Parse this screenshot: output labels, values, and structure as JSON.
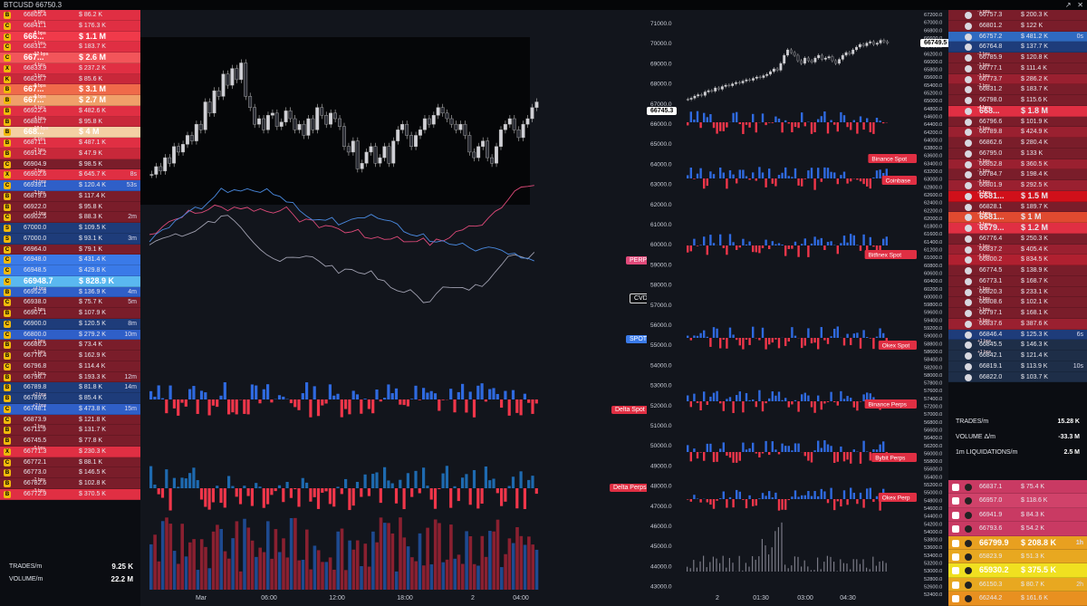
{
  "title": "BTCUSD 66750.3",
  "window_controls": [
    "↗",
    "✕"
  ],
  "left_trades": [
    {
      "ico": "B",
      "c": "#e02f43",
      "bps": "-6 bps",
      "price": "66805.4",
      "amount": "$ 86.2 K",
      "age": ""
    },
    {
      "ico": "C",
      "c": "#e02f43",
      "bps": "-5 bps",
      "price": "66841.1",
      "amount": "$ 176.3 K",
      "age": ""
    },
    {
      "ico": "C",
      "c": "#f03a4a",
      "bps": "-5 bps",
      "price": "666...",
      "amount": "$ 1.1 M",
      "age": "",
      "big": true
    },
    {
      "ico": "C",
      "c": "#e02f43",
      "bps": "-1 bps",
      "price": "66831.2",
      "amount": "$ 183.7 K",
      "age": ""
    },
    {
      "ico": "C",
      "c": "#f2555a",
      "bps": "-12 bps",
      "price": "667...",
      "amount": "$ 2.6 M",
      "age": "",
      "big": true
    },
    {
      "ico": "X",
      "c": "#e02f43",
      "bps": "-4 bps",
      "price": "66833.9",
      "amount": "$ 237.2 K",
      "age": ""
    },
    {
      "ico": "K",
      "c": "#c8283a",
      "bps": "-3 bps",
      "price": "66825.7",
      "amount": "$ 85.6 K",
      "age": ""
    },
    {
      "ico": "B",
      "c": "#f06a4a",
      "bps": "-9 bps",
      "price": "667...",
      "amount": "$ 3.1 M",
      "age": "",
      "big": true
    },
    {
      "ico": "B",
      "c": "#f0a06a",
      "bps": "-8 bps",
      "price": "667...",
      "amount": "$ 2.7 M",
      "age": "",
      "big": true
    },
    {
      "ico": "B",
      "c": "#e02f43",
      "bps": "-5 bps",
      "price": "66922.4",
      "amount": "$ 482.6 K",
      "age": ""
    },
    {
      "ico": "B",
      "c": "#c8283a",
      "bps": "-4 bps",
      "price": "66880.7",
      "amount": "$ 95.8 K",
      "age": ""
    },
    {
      "ico": "B",
      "c": "#f4d0a4",
      "bps": "-18 bps",
      "price": "668...",
      "amount": "$ 4 M",
      "age": "",
      "big": true
    },
    {
      "ico": "B",
      "c": "#e02f43",
      "bps": "-6 bps",
      "price": "66871.1",
      "amount": "$ 487.1 K",
      "age": ""
    },
    {
      "ico": "B",
      "c": "#c8283a",
      "bps": "-2 bps",
      "price": "66914.2",
      "amount": "$ 47.9 K",
      "age": ""
    },
    {
      "ico": "C",
      "c": "#7a1d2a",
      "bps": "",
      "price": "66904.9",
      "amount": "$ 98.5 K",
      "age": ""
    },
    {
      "ico": "X",
      "c": "#e02f43",
      "bps": "-7 bps",
      "price": "66902.6",
      "amount": "$ 645.7 K",
      "age": "8s"
    },
    {
      "ico": "C",
      "c": "#2f5fc8",
      "bps": "+1 bps",
      "price": "66939.1",
      "amount": "$ 120.4 K",
      "age": "53s"
    },
    {
      "ico": "B",
      "c": "#7a1d2a",
      "bps": "-2 bps",
      "price": "66879.9",
      "amount": "$ 117.4 K",
      "age": ""
    },
    {
      "ico": "B",
      "c": "#7a1d2a",
      "bps": "",
      "price": "66922.0",
      "amount": "$ 95.8 K",
      "age": ""
    },
    {
      "ico": "C",
      "c": "#7a1d2a",
      "bps": "+1 bps",
      "price": "66902.5",
      "amount": "$ 88.3 K",
      "age": "2m"
    },
    {
      "ico": "S",
      "c": "#1e3c7a",
      "bps": "",
      "price": "67000.0",
      "amount": "$ 109.5 K",
      "age": ""
    },
    {
      "ico": "S",
      "c": "#1e3c7a",
      "bps": "",
      "price": "67000.0",
      "amount": "$ 93.1 K",
      "age": "3m"
    },
    {
      "ico": "C",
      "c": "#7a1d2a",
      "bps": "",
      "price": "66964.0",
      "amount": "$ 79.1 K",
      "age": ""
    },
    {
      "ico": "C",
      "c": "#3a7ae8",
      "bps": "",
      "price": "66948.0",
      "amount": "$ 431.4 K",
      "age": ""
    },
    {
      "ico": "C",
      "c": "#3a7ae8",
      "bps": "",
      "price": "66948.5",
      "amount": "$ 429.8 K",
      "age": ""
    },
    {
      "ico": "C",
      "c": "#5ab8f0",
      "bps": "",
      "price": "66948.7",
      "amount": "$ 828.9 K",
      "age": "",
      "big": true
    },
    {
      "ico": "B",
      "c": "#2f5fc8",
      "bps": "+4 bps",
      "price": "66952.8",
      "amount": "$ 136.9 K",
      "age": "4m"
    },
    {
      "ico": "C",
      "c": "#7a1d2a",
      "bps": "",
      "price": "66938.0",
      "amount": "$ 75.7 K",
      "age": "5m"
    },
    {
      "ico": "B",
      "c": "#7a1d2a",
      "bps": "-2 bps",
      "price": "66907.1",
      "amount": "$ 107.9 K",
      "age": ""
    },
    {
      "ico": "C",
      "c": "#1e3c7a",
      "bps": "",
      "price": "66900.0",
      "amount": "$ 120.5 K",
      "age": "8m"
    },
    {
      "ico": "C",
      "c": "#2f5fc8",
      "bps": "",
      "price": "66800.0",
      "amount": "$ 279.2 K",
      "age": "10m"
    },
    {
      "ico": "B",
      "c": "#7a1d2a",
      "bps": "-2 bps",
      "price": "66686.5",
      "amount": "$ 73.4 K",
      "age": ""
    },
    {
      "ico": "B",
      "c": "#7a1d2a",
      "bps": "-1 bps",
      "price": "66776.4",
      "amount": "$ 162.9 K",
      "age": ""
    },
    {
      "ico": "C",
      "c": "#7a1d2a",
      "bps": "",
      "price": "66796.8",
      "amount": "$ 114.4 K",
      "age": ""
    },
    {
      "ico": "B",
      "c": "#7a1d2a",
      "bps": "-1 bps",
      "price": "66796.7",
      "amount": "$ 193.3 K",
      "age": "12m"
    },
    {
      "ico": "B",
      "c": "#1e3c7a",
      "bps": "",
      "price": "66789.8",
      "amount": "$ 81.8 K",
      "age": "14m"
    },
    {
      "ico": "B",
      "c": "#1e3c7a",
      "bps": "+2 bps",
      "price": "66789.6",
      "amount": "$ 85.4 K",
      "age": ""
    },
    {
      "ico": "C",
      "c": "#2f5fc8",
      "bps": "+2 bps",
      "price": "66748.1",
      "amount": "$ 473.8 K",
      "age": "15m"
    },
    {
      "ico": "C",
      "c": "#7a1d2a",
      "bps": "",
      "price": "66873.9",
      "amount": "$ 121.8 K",
      "age": ""
    },
    {
      "ico": "B",
      "c": "#7a1d2a",
      "bps": "-2 bps",
      "price": "66711.9",
      "amount": "$ 131.7 K",
      "age": ""
    },
    {
      "ico": "B",
      "c": "#7a1d2a",
      "bps": "",
      "price": "66745.5",
      "amount": "$ 77.8 K",
      "age": ""
    },
    {
      "ico": "X",
      "c": "#e02f43",
      "bps": "-5 bps",
      "price": "66771.3",
      "amount": "$ 230.3 K",
      "age": ""
    },
    {
      "ico": "C",
      "c": "#7a1d2a",
      "bps": "",
      "price": "66772.1",
      "amount": "$ 88.1 K",
      "age": ""
    },
    {
      "ico": "B",
      "c": "#7a1d2a",
      "bps": "",
      "price": "66773.0",
      "amount": "$ 146.5 K",
      "age": ""
    },
    {
      "ico": "B",
      "c": "#7a1d2a",
      "bps": "-2 bps",
      "price": "66782.6",
      "amount": "$ 102.8 K",
      "age": ""
    },
    {
      "ico": "B",
      "c": "#e02f43",
      "bps": "-3 bps",
      "price": "66772.9",
      "amount": "$ 370.5 K",
      "age": ""
    }
  ],
  "left_footer": {
    "trades_label": "TRADES/m",
    "trades_value": "9.25 K",
    "volume_label": "VOLUME/m",
    "volume_value": "22.2 M"
  },
  "right_trades": [
    {
      "c": "#7a1d2a",
      "bps": "-1 bps",
      "price": "66757.3",
      "amount": "$ 200.3 K",
      "age": ""
    },
    {
      "c": "#7a1d2a",
      "bps": "",
      "price": "66801.2",
      "amount": "$ 122 K",
      "age": ""
    },
    {
      "c": "#2f6ac0",
      "bps": "",
      "price": "66757.2",
      "amount": "$ 481.2 K",
      "age": "0s"
    },
    {
      "c": "#1e3c7a",
      "bps": "",
      "price": "66764.8",
      "amount": "$ 137.7 K",
      "age": ""
    },
    {
      "c": "#7a1d2a",
      "bps": "-2 bps",
      "price": "66785.9",
      "amount": "$ 120.8 K",
      "age": ""
    },
    {
      "c": "#7a1d2a",
      "bps": "-1 bps",
      "price": "66777.1",
      "amount": "$ 111.4 K",
      "age": ""
    },
    {
      "c": "#9a2030",
      "bps": "-3 bps",
      "price": "66773.7",
      "amount": "$ 286.2 K",
      "age": ""
    },
    {
      "c": "#7a1d2a",
      "bps": "-2 bps",
      "price": "66831.2",
      "amount": "$ 183.7 K",
      "age": ""
    },
    {
      "c": "#7a1d2a",
      "bps": "",
      "price": "66798.0",
      "amount": "$ 115.6 K",
      "age": ""
    },
    {
      "c": "#e02f43",
      "bps": "-4 bps",
      "price": "668...",
      "amount": "$ 1.8 M",
      "age": "",
      "big": true
    },
    {
      "c": "#7a1d2a",
      "bps": "",
      "price": "66796.6",
      "amount": "$ 101.9 K",
      "age": ""
    },
    {
      "c": "#9a2030",
      "bps": "-3 bps",
      "price": "66789.8",
      "amount": "$ 424.9 K",
      "age": ""
    },
    {
      "c": "#7a1d2a",
      "bps": "",
      "price": "66862.6",
      "amount": "$ 280.4 K",
      "age": ""
    },
    {
      "c": "#7a1d2a",
      "bps": "",
      "price": "66795.0",
      "amount": "$ 133 K",
      "age": ""
    },
    {
      "c": "#9a2030",
      "bps": "-2 bps",
      "price": "66852.8",
      "amount": "$ 360.5 K",
      "age": ""
    },
    {
      "c": "#7a1d2a",
      "bps": "-1 bps",
      "price": "66784.7",
      "amount": "$ 198.4 K",
      "age": ""
    },
    {
      "c": "#9a2030",
      "bps": "-8 bps",
      "price": "66801.9",
      "amount": "$ 292.5 K",
      "age": ""
    },
    {
      "c": "#d0101a",
      "bps": "-5 bps",
      "price": "6681...",
      "amount": "$ 1.5 M",
      "age": "",
      "big": true
    },
    {
      "c": "#7a1d2a",
      "bps": "",
      "price": "66828.1",
      "amount": "$ 189.7 K",
      "age": ""
    },
    {
      "c": "#e04a30",
      "bps": "-4 bps",
      "price": "6681...",
      "amount": "$ 1 M",
      "age": "",
      "big": true
    },
    {
      "c": "#e02f43",
      "bps": "-3 bps",
      "price": "6679...",
      "amount": "$ 1.2 M",
      "age": "",
      "big": true
    },
    {
      "c": "#7a1d2a",
      "bps": "",
      "price": "66776.4",
      "amount": "$ 250.3 K",
      "age": ""
    },
    {
      "c": "#9a2030",
      "bps": "-2 bps",
      "price": "66837.2",
      "amount": "$ 405.4 K",
      "age": ""
    },
    {
      "c": "#b02030",
      "bps": "-6 bps",
      "price": "66800.2",
      "amount": "$ 834.5 K",
      "age": ""
    },
    {
      "c": "#7a1d2a",
      "bps": "",
      "price": "66774.5",
      "amount": "$ 138.9 K",
      "age": ""
    },
    {
      "c": "#7a1d2a",
      "bps": "",
      "price": "66773.1",
      "amount": "$ 168.7 K",
      "age": ""
    },
    {
      "c": "#7a1d2a",
      "bps": "-1 bps",
      "price": "66820.3",
      "amount": "$ 233.1 K",
      "age": ""
    },
    {
      "c": "#7a1d2a",
      "bps": "-2 bps",
      "price": "66808.6",
      "amount": "$ 102.1 K",
      "age": ""
    },
    {
      "c": "#7a1d2a",
      "bps": "-1 bps",
      "price": "66797.1",
      "amount": "$ 168.1 K",
      "age": ""
    },
    {
      "c": "#9a2030",
      "bps": "-3 bps",
      "price": "66837.6",
      "amount": "$ 387.6 K",
      "age": ""
    },
    {
      "c": "#1e3c7a",
      "bps": "",
      "price": "66846.4",
      "amount": "$ 125.3 K",
      "age": "6s"
    },
    {
      "c": "#1e2e48",
      "bps": "+1 bps",
      "price": "66845.5",
      "amount": "$ 146.3 K",
      "age": ""
    },
    {
      "c": "#1e2e48",
      "bps": "+1 bps",
      "price": "66842.1",
      "amount": "$ 121.4 K",
      "age": ""
    },
    {
      "c": "#1e2e48",
      "bps": "",
      "price": "66819.1",
      "amount": "$ 113.9 K",
      "age": "10s"
    },
    {
      "c": "#1e2e48",
      "bps": "",
      "price": "66822.0",
      "amount": "$ 103.7 K",
      "age": ""
    }
  ],
  "right_stats": [
    {
      "label": "TRADES/m",
      "value": "15.28 K"
    },
    {
      "label": "VOLUME Δ/m",
      "value": "-33.3 M"
    },
    {
      "label": "1m LIQUIDATIONS/m",
      "value": "2.5 M"
    }
  ],
  "liquidations": [
    {
      "c": "#c93a63",
      "price": "66837.1",
      "amount": "$ 75.4 K",
      "age": "",
      "big": false
    },
    {
      "c": "#d0426a",
      "price": "66957.0",
      "amount": "$ 118.6 K",
      "age": "",
      "big": false
    },
    {
      "c": "#c93a63",
      "price": "66941.9",
      "amount": "$ 84.3 K",
      "age": "",
      "big": false
    },
    {
      "c": "#c93a63",
      "price": "66793.6",
      "amount": "$ 54.2 K",
      "age": "",
      "big": false
    },
    {
      "c": "#e8a020",
      "price": "66799.9",
      "amount": "$ 208.8 K",
      "age": "1h",
      "big": true
    },
    {
      "c": "#e8a820",
      "price": "65823.9",
      "amount": "$ 51.3 K",
      "age": "",
      "big": false
    },
    {
      "c": "#f0e020",
      "price": "65930.2",
      "amount": "$ 375.5 K",
      "age": "",
      "big": true
    },
    {
      "c": "#e8a820",
      "price": "66150.3",
      "amount": "$ 80.7 K",
      "age": "2h",
      "big": false
    },
    {
      "c": "#e89020",
      "price": "66244.2",
      "amount": "$ 161.6 K",
      "age": "",
      "big": false
    }
  ],
  "main_chart": {
    "time_labels": [
      "Mar",
      "06:00",
      "12:00",
      "18:00",
      "2",
      "04:00"
    ],
    "tags": {
      "perp": "PERP",
      "cvd": "CVD",
      "spot": "SPOT",
      "delta_spot": "Delta Spot",
      "delta_perps": "Delta Perps"
    },
    "candles": [
      66450,
      66520,
      66480,
      66600,
      66550,
      66700,
      66650,
      66720,
      66800,
      66750,
      66900,
      66850,
      67100,
      67000,
      67200,
      67150,
      67350,
      67250,
      67400,
      67300,
      67450,
      67150,
      67050,
      66900,
      66950,
      66850,
      66980,
      67000,
      66880,
      66920,
      67020,
      66950,
      66850,
      66900,
      66800,
      66950,
      66850,
      67050,
      66980,
      66900,
      67000,
      66950,
      66880,
      66700,
      66650,
      66750,
      66500,
      66550,
      66650,
      66700,
      66550,
      66600,
      66700,
      66550,
      66750,
      66850,
      66900,
      66800,
      66700,
      66800,
      66850,
      66950,
      66900,
      66980,
      67050,
      67000,
      66950,
      66900,
      66850,
      66900,
      66800,
      66650,
      66600,
      66700,
      66750,
      66600,
      66550,
      66700,
      66850,
      66900,
      66950,
      66850,
      66780,
      66900,
      66950,
      67050,
      67100
    ]
  },
  "right_chart": {
    "time_labels": [
      "2",
      "01:30",
      "03:00",
      "04:30"
    ],
    "price_value": "66745.3",
    "current_price": "66749.5",
    "left_axis": [
      "71000.0",
      "70000.0",
      "69000.0",
      "68000.0",
      "67000.0",
      "66000.0",
      "65000.0",
      "64000.0",
      "63000.0",
      "62000.0",
      "61000.0",
      "60000.0",
      "59000.0",
      "58000.0",
      "57000.0",
      "56000.0",
      "55000.0",
      "54000.0",
      "53000.0",
      "52000.0",
      "51000.0",
      "50000.0",
      "49000.0",
      "48000.0",
      "47000.0",
      "46000.0",
      "45000.0",
      "44000.0",
      "43000.0"
    ],
    "right_axis": [
      "67200.0",
      "67000.0",
      "66800.0",
      "66600.0",
      "66400.0",
      "66200.0",
      "66000.0",
      "65800.0",
      "65600.0",
      "65400.0",
      "65200.0",
      "65000.0",
      "64800.0",
      "64600.0",
      "64400.0",
      "64200.0",
      "64000.0",
      "63800.0",
      "63600.0",
      "63400.0",
      "63200.0",
      "63000.0",
      "62800.0",
      "62600.0",
      "62400.0",
      "62200.0",
      "62000.0",
      "61800.0",
      "61600.0",
      "61400.0",
      "61200.0",
      "61000.0",
      "60800.0",
      "60600.0",
      "60400.0",
      "60200.0",
      "60000.0",
      "59800.0",
      "59600.0",
      "59400.0",
      "59200.0",
      "59000.0",
      "58800.0",
      "58600.0",
      "58400.0",
      "58200.0",
      "58000.0",
      "57800.0",
      "57600.0",
      "57400.0",
      "57200.0",
      "57000.0",
      "56800.0",
      "56600.0",
      "56400.0",
      "56200.0",
      "56000.0",
      "55800.0",
      "55600.0",
      "55400.0",
      "55200.0",
      "55000.0",
      "54800.0",
      "54600.0",
      "54400.0",
      "54200.0",
      "54000.0",
      "53800.0",
      "53600.0",
      "53400.0",
      "53200.0",
      "53000.0",
      "52800.0",
      "52600.0",
      "52400.0"
    ],
    "exchanges": [
      "Binance Spot",
      "Coinbase",
      "Bitfinex Spot",
      "Okex Spot",
      "Binance Perps",
      "Bybit Perps",
      "Okex Perp"
    ],
    "candles": [
      67980,
      68020,
      68100,
      68150,
      68120,
      68250,
      68300,
      68280,
      68400,
      68350,
      68450,
      68500,
      68480,
      68550,
      68600,
      68580,
      68650,
      68700,
      68680,
      68750,
      68800,
      68780,
      68850,
      68900,
      69000,
      69100,
      69050,
      69300,
      69600,
      69800,
      69700,
      69600,
      69400,
      69300,
      69500,
      69400,
      69350,
      69500,
      69600,
      69450,
      69500,
      69550,
      69400,
      69300,
      69450,
      69600,
      69700,
      69650,
      69800,
      69900,
      70000,
      69950,
      70050,
      70100,
      70000,
      70050,
      70150,
      70100,
      70050
    ]
  },
  "colors": {
    "buy": "#2f6ae0",
    "sell": "#f0364a",
    "bg": "#12151c",
    "perp_line": "#e04a7a",
    "cvd_line": "#a0a0b0",
    "spot_line": "#4a8ae0"
  }
}
